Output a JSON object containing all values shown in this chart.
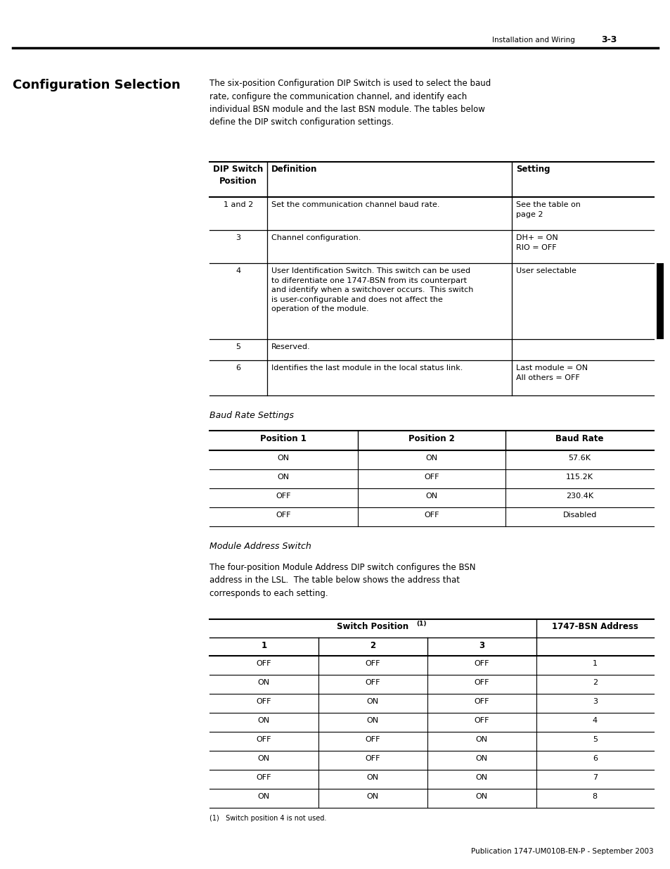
{
  "page_header_text": "Installation and Wiring",
  "page_header_num": "3-3",
  "section_title": "Configuration Selection",
  "intro_text": "The six-position Configuration DIP Switch is used to select the baud\nrate, configure the communication channel, and identify each\nindividual BSN module and the last BSN module. The tables below\ndefine the DIP switch configuration settings.",
  "table1_rows": [
    [
      "1 and 2",
      "Set the communication channel baud rate.",
      "See the table on\npage 2"
    ],
    [
      "3",
      "Channel configuration.",
      "DH+ = ON\nRIO = OFF"
    ],
    [
      "4",
      "User Identification Switch. This switch can be used\nto diferentiate one 1747-BSN from its counterpart\nand identify when a switchover occurs.  This switch\nis user-configurable and does not affect the\noperation of the module.",
      "User selectable"
    ],
    [
      "5",
      "Reserved.",
      ""
    ],
    [
      "6",
      "Identifies the last module in the local status link.",
      "Last module = ON\nAll others = OFF"
    ]
  ],
  "baud_rate_heading": "Baud Rate Settings",
  "table2_rows": [
    [
      "ON",
      "ON",
      "57.6K"
    ],
    [
      "ON",
      "OFF",
      "115.2K"
    ],
    [
      "OFF",
      "ON",
      "230.4K"
    ],
    [
      "OFF",
      "OFF",
      "Disabled"
    ]
  ],
  "module_addr_heading": "Module Address Switch",
  "module_addr_text": "The four-position Module Address DIP switch configures the BSN\naddress in the LSL.  The table below shows the address that\ncorresponds to each setting.",
  "table3_rows": [
    [
      "OFF",
      "OFF",
      "OFF",
      "1"
    ],
    [
      "ON",
      "OFF",
      "OFF",
      "2"
    ],
    [
      "OFF",
      "ON",
      "OFF",
      "3"
    ],
    [
      "ON",
      "ON",
      "OFF",
      "4"
    ],
    [
      "OFF",
      "OFF",
      "ON",
      "5"
    ],
    [
      "ON",
      "OFF",
      "ON",
      "6"
    ],
    [
      "OFF",
      "ON",
      "ON",
      "7"
    ],
    [
      "ON",
      "ON",
      "ON",
      "8"
    ]
  ],
  "footnote": "(1)   Switch position 4 is not used.",
  "footer_text": "Publication 1747-UM010B-EN-P - September 2003",
  "bg_color": "#ffffff",
  "text_color": "#000000"
}
